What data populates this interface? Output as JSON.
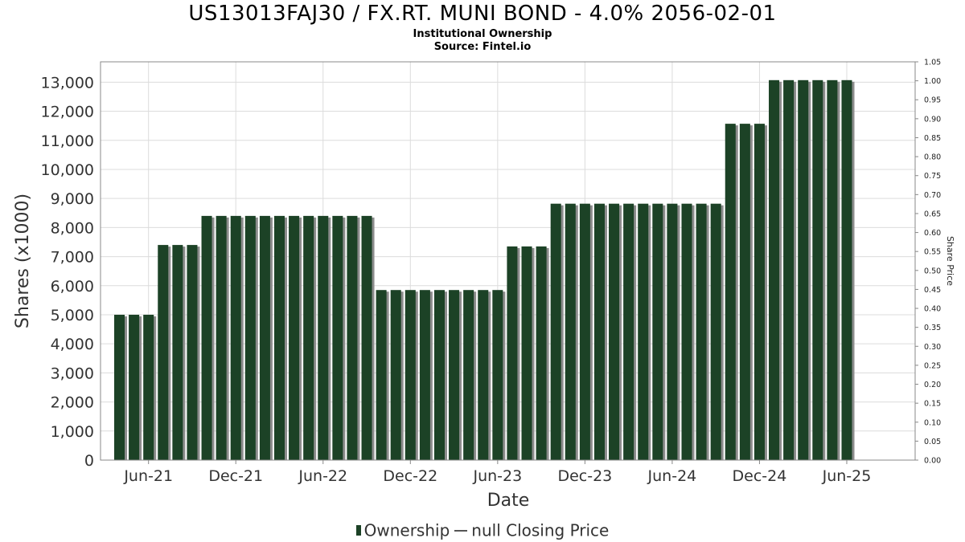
{
  "title": "US13013FAJ30 / FX.RT. MUNI BOND - 4.0% 2056-02-01",
  "subtitle_1": "Institutional Ownership",
  "subtitle_2": "Source: Fintel.io",
  "legend": {
    "ownership": "Ownership",
    "price": "null Closing Price"
  },
  "colors": {
    "bar": "#1c4226",
    "bar_shadow": "#8c8c8c",
    "grid": "#dcdcdc",
    "axis": "#888888"
  },
  "chart_data": {
    "type": "bar",
    "xlabel": "Date",
    "ylabel": "Shares (x1000)",
    "y2label": "Share Price",
    "ylim": [
      0,
      13700
    ],
    "y2lim": [
      0,
      1.05
    ],
    "grid": true,
    "legend_position": "bottom",
    "yticks": [
      "0",
      "1,000",
      "2,000",
      "3,000",
      "4,000",
      "5,000",
      "6,000",
      "7,000",
      "8,000",
      "9,000",
      "10,000",
      "11,000",
      "12,000",
      "13,000"
    ],
    "y2ticks": [
      "0.00",
      "0.05",
      "0.10",
      "0.15",
      "0.20",
      "0.25",
      "0.30",
      "0.35",
      "0.40",
      "0.45",
      "0.50",
      "0.55",
      "0.60",
      "0.65",
      "0.70",
      "0.75",
      "0.80",
      "0.85",
      "0.90",
      "0.95",
      "1.00",
      "1.05"
    ],
    "xticks": [
      "Jun-21",
      "Dec-21",
      "Jun-22",
      "Dec-22",
      "Jun-23",
      "Dec-23",
      "Jun-24",
      "Dec-24",
      "Jun-25"
    ],
    "xtick_positions": [
      2,
      8,
      14,
      20,
      26,
      32,
      38,
      44,
      50
    ],
    "period_range": [
      -1.3,
      54.7
    ],
    "series": [
      {
        "name": "Ownership",
        "values": [
          5000,
          5000,
          5000,
          7400,
          7400,
          7400,
          8400,
          8400,
          8400,
          8400,
          8400,
          8400,
          8400,
          8400,
          8400,
          8400,
          8400,
          8400,
          5850,
          5850,
          5850,
          5850,
          5850,
          5850,
          5850,
          5850,
          5850,
          7350,
          7350,
          7350,
          8820,
          8820,
          8820,
          8820,
          8820,
          8820,
          8820,
          8820,
          8820,
          8820,
          8820,
          8820,
          11570,
          11570,
          11570,
          13070,
          13070,
          13070,
          13070,
          13070,
          13070
        ]
      }
    ]
  }
}
